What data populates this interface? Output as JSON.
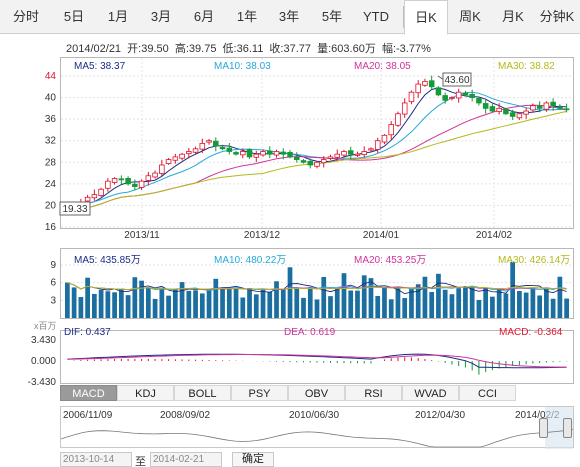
{
  "tabs": [
    "分时",
    "5日",
    "1月",
    "3月",
    "6月",
    "1年",
    "3年",
    "5年",
    "YTD",
    "日K",
    "周K",
    "月K",
    "分钟K"
  ],
  "active_tab": "日K",
  "summary": "2014/02/21  开:39.50  高:39.75  低:36.11  收:37.77  量:603.60万  幅:-3.77%",
  "price_panel": {
    "ma5": "MA5: 38.37",
    "ma10": "MA10: 38.03",
    "ma20": "MA20: 38.05",
    "ma30": "MA30: 38.82",
    "y_ticks": [
      "44",
      "40",
      "36",
      "32",
      "28",
      "24",
      "20",
      "16"
    ],
    "x_ticks": [
      "2013/11",
      "2013/12",
      "2014/01",
      "2014/02"
    ],
    "high_label": "43.60",
    "low_label": "19.33"
  },
  "volume_panel": {
    "ma5": "MA5: 435.85万",
    "ma10": "MA10: 480.22万",
    "ma20": "MA20: 453.25万",
    "ma30": "MA30: 426.14万",
    "unit": "x百万",
    "y_ticks": [
      "9",
      "6",
      "3"
    ]
  },
  "macd_panel": {
    "dif": "DIF: 0.437",
    "dea": "DEA: 0.619",
    "macd": "MACD: -0.364",
    "y_ticks": [
      "3.430",
      "0.000",
      "-3.430"
    ]
  },
  "indicator_tabs": [
    "MACD",
    "KDJ",
    "BOLL",
    "PSY",
    "OBV",
    "RSI",
    "WVAD",
    "CCI"
  ],
  "active_indicator": "MACD",
  "navigator_dates": [
    "2006/11/09",
    "2008/09/02",
    "2010/06/30",
    "2012/04/30",
    "2014/02/2"
  ],
  "range": {
    "start": "2013-10-14",
    "to": "至",
    "end": "2014-02-21",
    "confirm": "确定"
  },
  "colors": {
    "up": "#e2132a",
    "down": "#149a37",
    "ma5": "#1b2d83",
    "ma10": "#26a9d9",
    "ma20": "#d1329a",
    "ma30": "#b5b81a",
    "volume": "#1b6ea0",
    "macd_line": "#1b2d83",
    "dea_line": "#d1329a"
  },
  "chart_data": {
    "type": "candlestick",
    "price_range": [
      16,
      45
    ],
    "approx_close_path": [
      19.5,
      20,
      20.5,
      21.5,
      22,
      23,
      24.5,
      25,
      24.8,
      24,
      23.5,
      24.5,
      25.5,
      26,
      27.5,
      28.5,
      29,
      29.5,
      30,
      30.5,
      31.5,
      32,
      31,
      30.5,
      30,
      29.5,
      30,
      29,
      29.5,
      30,
      29.5,
      30,
      29.5,
      29,
      28.5,
      28,
      27.5,
      28,
      28.5,
      29,
      29.5,
      30,
      29.5,
      29.5,
      30,
      30.5,
      32,
      33,
      35,
      37,
      39,
      41,
      42.5,
      43,
      42,
      40.5,
      39.5,
      40,
      41,
      40.5,
      40,
      39,
      38,
      37.5,
      38,
      37,
      36.5,
      37,
      37.5,
      38.5,
      38,
      39,
      38.5,
      38,
      37.8
    ]
  }
}
